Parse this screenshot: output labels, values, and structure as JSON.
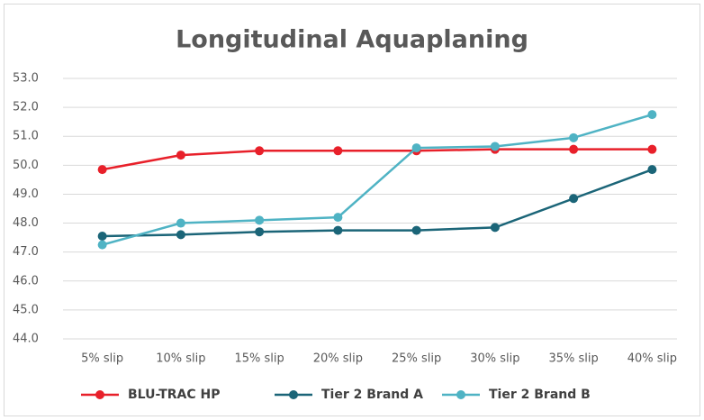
{
  "chart_data": {
    "type": "line",
    "title": "Longitudinal Aquaplaning",
    "categories": [
      "5% slip",
      "10% slip",
      "15% slip",
      "20% slip",
      "25% slip",
      "30% slip",
      "35% slip",
      "40% slip"
    ],
    "series": [
      {
        "name": "BLU-TRAC HP",
        "color": "#e8202a",
        "values": [
          49.85,
          50.35,
          50.5,
          50.5,
          50.5,
          50.55,
          50.55,
          50.55
        ]
      },
      {
        "name": "Tier 2 Brand A",
        "color": "#1b6578",
        "values": [
          47.55,
          47.6,
          47.7,
          47.75,
          47.75,
          47.85,
          48.85,
          49.85
        ]
      },
      {
        "name": "Tier 2 Brand B",
        "color": "#4fb3c4",
        "values": [
          47.25,
          48.0,
          48.1,
          48.2,
          50.6,
          50.65,
          50.95,
          51.75
        ]
      }
    ],
    "ylim": [
      44,
      53
    ],
    "yticks": [
      {
        "value": 44,
        "label": "44.0"
      },
      {
        "value": 45,
        "label": "45.0"
      },
      {
        "value": 46,
        "label": "46.0"
      },
      {
        "value": 47,
        "label": "47.0"
      },
      {
        "value": 48,
        "label": "48.0"
      },
      {
        "value": 49,
        "label": "49.0"
      },
      {
        "value": 50,
        "label": "50.0"
      },
      {
        "value": 51,
        "label": "51.0"
      },
      {
        "value": 52,
        "label": "52.0"
      },
      {
        "value": 53,
        "label": "53.0"
      }
    ],
    "grid": true,
    "legend": "bottom"
  }
}
